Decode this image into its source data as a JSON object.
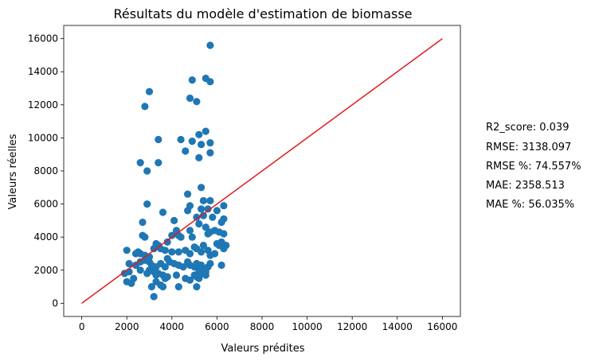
{
  "chart_data": {
    "type": "scatter",
    "title": "Résultats du modèle d'estimation de biomasse",
    "xlabel": "Valeurs prédites",
    "ylabel": "Valeurs réelles",
    "xlim": [
      -800,
      16800
    ],
    "ylim": [
      -800,
      16800
    ],
    "xticks": [
      0,
      2000,
      4000,
      6000,
      8000,
      10000,
      12000,
      14000,
      16000
    ],
    "yticks": [
      0,
      2000,
      4000,
      6000,
      8000,
      10000,
      12000,
      14000,
      16000
    ],
    "grid": false,
    "colors": {
      "points": "#1f77b4",
      "reference_line": "#e31a1c",
      "axes": "#000000"
    },
    "reference_line": {
      "x": [
        0,
        16000
      ],
      "y": [
        0,
        16000
      ]
    },
    "points": [
      [
        5700,
        15600
      ],
      [
        4900,
        13500
      ],
      [
        5500,
        13600
      ],
      [
        5700,
        13400
      ],
      [
        3000,
        12800
      ],
      [
        2800,
        11900
      ],
      [
        4800,
        12400
      ],
      [
        5100,
        12200
      ],
      [
        5500,
        10400
      ],
      [
        5200,
        10200
      ],
      [
        3400,
        9900
      ],
      [
        4400,
        9900
      ],
      [
        4900,
        9800
      ],
      [
        4600,
        9200
      ],
      [
        5300,
        9600
      ],
      [
        5700,
        9700
      ],
      [
        5700,
        9100
      ],
      [
        2600,
        8500
      ],
      [
        3400,
        8500
      ],
      [
        5200,
        8800
      ],
      [
        2900,
        8000
      ],
      [
        5300,
        7000
      ],
      [
        4700,
        6600
      ],
      [
        2900,
        6000
      ],
      [
        5400,
        6200
      ],
      [
        5700,
        6200
      ],
      [
        3600,
        5500
      ],
      [
        4700,
        5600
      ],
      [
        4800,
        5900
      ],
      [
        5300,
        5700
      ],
      [
        5600,
        5700
      ],
      [
        6000,
        5600
      ],
      [
        6300,
        5900
      ],
      [
        2700,
        4900
      ],
      [
        4100,
        5000
      ],
      [
        5100,
        5200
      ],
      [
        5400,
        5300
      ],
      [
        5800,
        5200
      ],
      [
        6300,
        5100
      ],
      [
        6200,
        4900
      ],
      [
        2700,
        4100
      ],
      [
        2800,
        4000
      ],
      [
        3800,
        3700
      ],
      [
        4000,
        4100
      ],
      [
        4200,
        4400
      ],
      [
        4300,
        4100
      ],
      [
        4400,
        4000
      ],
      [
        4800,
        4400
      ],
      [
        4900,
        4000
      ],
      [
        5200,
        4800
      ],
      [
        5500,
        4600
      ],
      [
        5600,
        4200
      ],
      [
        5700,
        4300
      ],
      [
        5900,
        4400
      ],
      [
        6100,
        4300
      ],
      [
        6300,
        4200
      ],
      [
        6200,
        3700
      ],
      [
        6400,
        3500
      ],
      [
        2000,
        3200
      ],
      [
        2400,
        3000
      ],
      [
        2500,
        3100
      ],
      [
        2600,
        3000
      ],
      [
        2800,
        2900
      ],
      [
        3000,
        2800
      ],
      [
        3200,
        3300
      ],
      [
        3300,
        3600
      ],
      [
        3400,
        3500
      ],
      [
        3500,
        3300
      ],
      [
        3700,
        3200
      ],
      [
        4000,
        3100
      ],
      [
        4300,
        3100
      ],
      [
        4600,
        3200
      ],
      [
        4800,
        3000
      ],
      [
        5000,
        3400
      ],
      [
        5100,
        3300
      ],
      [
        5300,
        3100
      ],
      [
        5400,
        3500
      ],
      [
        5600,
        3200
      ],
      [
        5700,
        2900
      ],
      [
        5900,
        3000
      ],
      [
        6000,
        3600
      ],
      [
        6100,
        3500
      ],
      [
        6300,
        3300
      ],
      [
        2100,
        2400
      ],
      [
        2400,
        2300
      ],
      [
        2600,
        2500
      ],
      [
        2800,
        2600
      ],
      [
        3000,
        2500
      ],
      [
        3100,
        2300
      ],
      [
        3300,
        2200
      ],
      [
        3500,
        2400
      ],
      [
        3700,
        2200
      ],
      [
        3800,
        2700
      ],
      [
        3900,
        2500
      ],
      [
        4100,
        2400
      ],
      [
        4300,
        2300
      ],
      [
        4500,
        2200
      ],
      [
        4700,
        2500
      ],
      [
        4800,
        2300
      ],
      [
        5000,
        2200
      ],
      [
        5100,
        2400
      ],
      [
        5200,
        2100
      ],
      [
        5300,
        2300
      ],
      [
        5400,
        2000
      ],
      [
        5500,
        1900
      ],
      [
        5600,
        2200
      ],
      [
        5700,
        2400
      ],
      [
        6200,
        2300
      ],
      [
        1900,
        1800
      ],
      [
        2100,
        1900
      ],
      [
        2300,
        1500
      ],
      [
        2600,
        2000
      ],
      [
        2900,
        1800
      ],
      [
        3000,
        2000
      ],
      [
        3200,
        1900
      ],
      [
        3300,
        1700
      ],
      [
        3400,
        1800
      ],
      [
        3600,
        1700
      ],
      [
        3700,
        1500
      ],
      [
        3800,
        1600
      ],
      [
        4200,
        1700
      ],
      [
        4600,
        1500
      ],
      [
        4800,
        1400
      ],
      [
        5000,
        1700
      ],
      [
        5100,
        1600
      ],
      [
        5200,
        1500
      ],
      [
        5300,
        1900
      ],
      [
        5400,
        1800
      ],
      [
        5500,
        1700
      ],
      [
        2000,
        1300
      ],
      [
        2200,
        1200
      ],
      [
        3100,
        1000
      ],
      [
        3300,
        1300
      ],
      [
        3500,
        1100
      ],
      [
        3600,
        1000
      ],
      [
        4300,
        1000
      ],
      [
        5100,
        1000
      ],
      [
        5200,
        1900
      ],
      [
        3200,
        400
      ]
    ]
  },
  "metrics": [
    "R2_score: 0.039",
    "RMSE: 3138.097",
    "RMSE %: 74.557%",
    "MAE: 2358.513",
    "MAE %: 56.035%"
  ]
}
